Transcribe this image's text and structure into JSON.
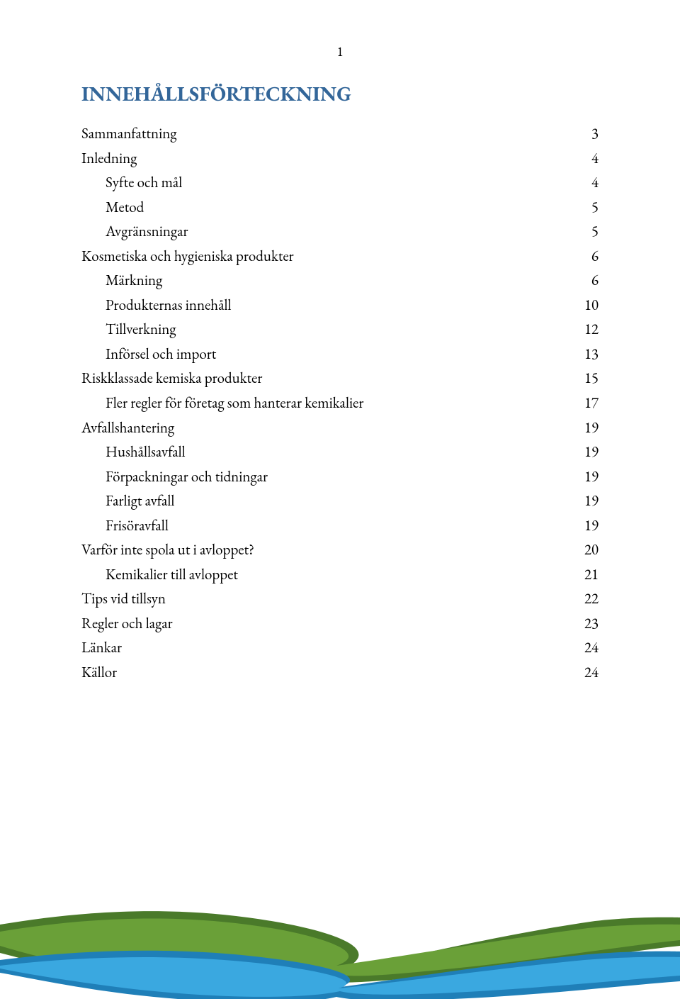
{
  "page_number": "1",
  "heading": {
    "text": "INNEHÅLLSFÖRTECKNING",
    "color": "#336699"
  },
  "toc": [
    {
      "label": "Sammanfattning",
      "page": "3",
      "indent": false
    },
    {
      "label": "Inledning",
      "page": "4",
      "indent": false
    },
    {
      "label": "Syfte och mål",
      "page": "4",
      "indent": true
    },
    {
      "label": "Metod",
      "page": "5",
      "indent": true
    },
    {
      "label": "Avgränsningar",
      "page": "5",
      "indent": true
    },
    {
      "label": "Kosmetiska och hygieniska produkter",
      "page": "6",
      "indent": false
    },
    {
      "label": "Märkning",
      "page": "6",
      "indent": true
    },
    {
      "label": "Produkternas innehåll",
      "page": "10",
      "indent": true
    },
    {
      "label": "Tillverkning",
      "page": "12",
      "indent": true
    },
    {
      "label": "Införsel och import",
      "page": "13",
      "indent": true
    },
    {
      "label": "Riskklassade kemiska produkter",
      "page": "15",
      "indent": false
    },
    {
      "label": "Fler regler för företag som hanterar kemikalier",
      "page": "17",
      "indent": true
    },
    {
      "label": "Avfallshantering",
      "page": "19",
      "indent": false
    },
    {
      "label": "Hushållsavfall",
      "page": "19",
      "indent": true
    },
    {
      "label": "Förpackningar och tidningar",
      "page": "19",
      "indent": true
    },
    {
      "label": "Farligt avfall",
      "page": "19",
      "indent": true
    },
    {
      "label": "Frisöravfall",
      "page": "19",
      "indent": true
    },
    {
      "label": "Varför inte spola ut i avloppet?",
      "page": "20",
      "indent": false
    },
    {
      "label": "Kemikalier till avloppet",
      "page": "21",
      "indent": true
    },
    {
      "label": "Tips vid tillsyn",
      "page": "22",
      "indent": false
    },
    {
      "label": "Regler och lagar",
      "page": "23",
      "indent": false
    },
    {
      "label": "Länkar",
      "page": "24",
      "indent": false
    },
    {
      "label": "Källor",
      "page": "24",
      "indent": false
    }
  ],
  "waves": {
    "green_dark": "#4a7a2a",
    "green_light": "#6aa038",
    "blue_dark": "#1f7fb8",
    "blue_light": "#3aa8e0"
  }
}
